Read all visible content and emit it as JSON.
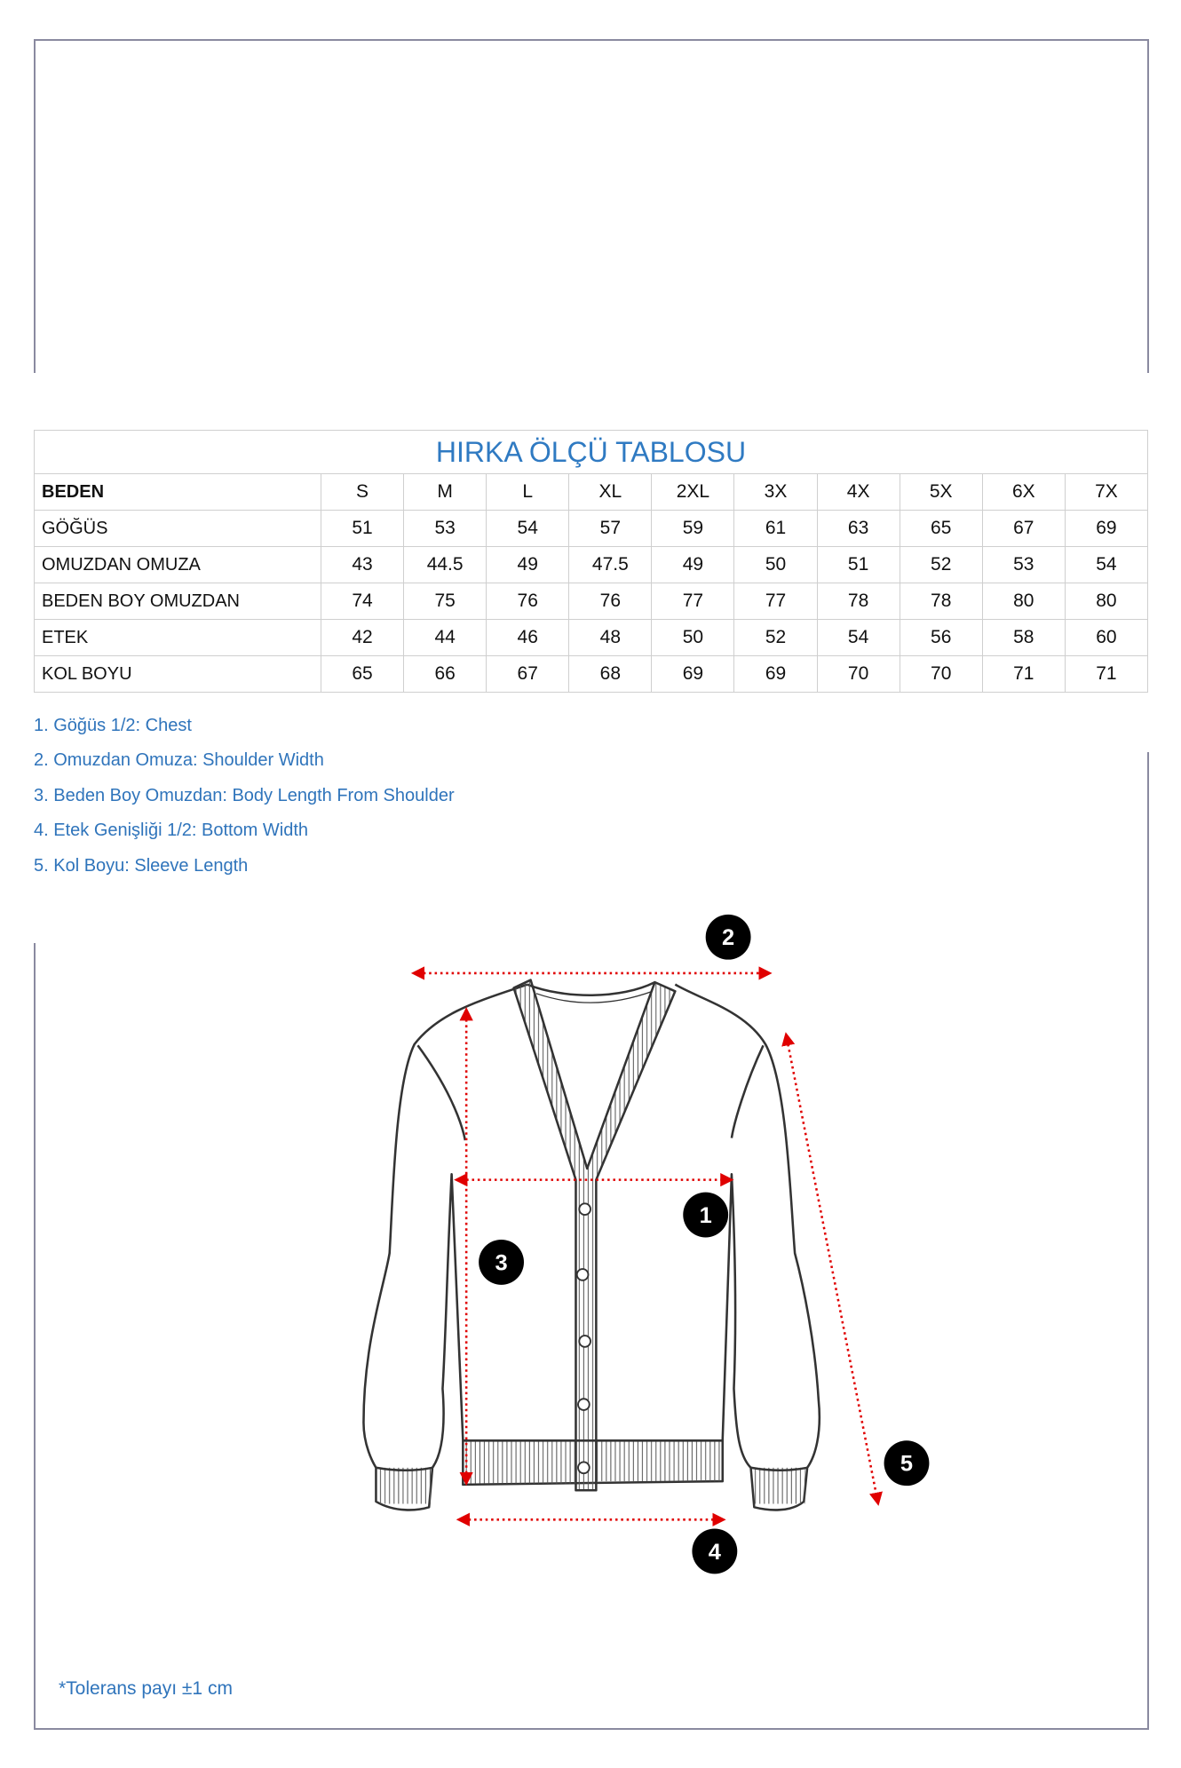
{
  "table": {
    "title": "HIRKA ÖLÇÜ TABLOSU",
    "header": {
      "label": "BEDEN",
      "sizes": [
        "S",
        "M",
        "L",
        "XL",
        "2XL",
        "3X",
        "4X",
        "5X",
        "6X",
        "7X"
      ]
    },
    "rows": [
      {
        "label": "GÖĞÜS",
        "values": [
          "51",
          "53",
          "54",
          "57",
          "59",
          "61",
          "63",
          "65",
          "67",
          "69"
        ]
      },
      {
        "label": "OMUZDAN OMUZA",
        "values": [
          "43",
          "44.5",
          "49",
          "47.5",
          "49",
          "50",
          "51",
          "52",
          "53",
          "54"
        ]
      },
      {
        "label": "BEDEN BOY OMUZDAN",
        "values": [
          "74",
          "75",
          "76",
          "76",
          "77",
          "77",
          "78",
          "78",
          "80",
          "80"
        ]
      },
      {
        "label": "ETEK",
        "values": [
          "42",
          "44",
          "46",
          "48",
          "50",
          "52",
          "54",
          "56",
          "58",
          "60"
        ]
      },
      {
        "label": "KOL BOYU",
        "values": [
          "65",
          "66",
          "67",
          "68",
          "69",
          "69",
          "70",
          "70",
          "71",
          "71"
        ]
      }
    ]
  },
  "legend": [
    "1. Göğüs 1/2: Chest",
    "2. Omuzdan Omuza: Shoulder Width",
    "3. Beden Boy Omuzdan: Body Length From Shoulder",
    "4. Etek Genişliği 1/2: Bottom Width",
    "5. Kol Boyu: Sleeve Length"
  ],
  "markers": [
    "1",
    "2",
    "3",
    "4",
    "5"
  ],
  "tolerance": "*Tolerans payı ±1 cm",
  "colors": {
    "accent": "#2f7ac2",
    "measure_line": "#e00000",
    "marker": "#000000"
  }
}
